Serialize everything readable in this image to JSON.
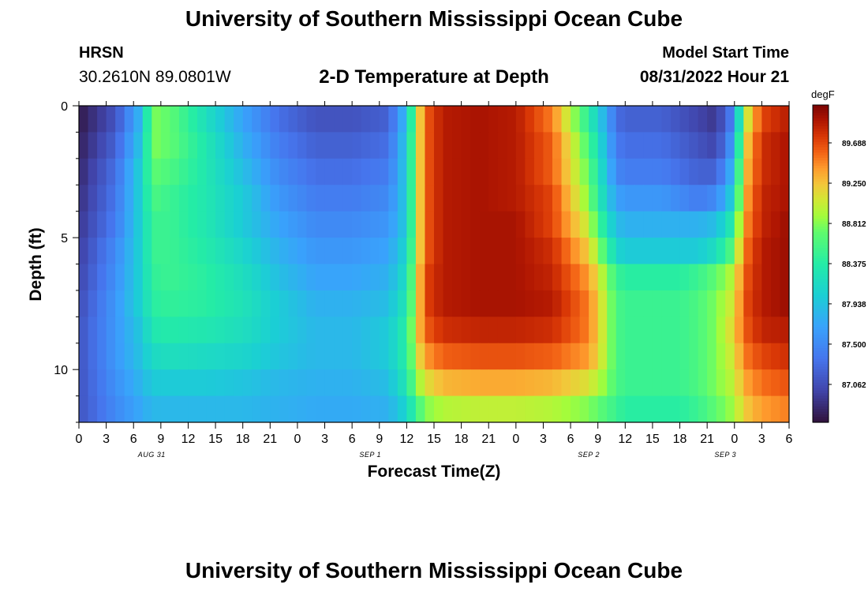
{
  "header": {
    "title": "University of Southern Mississippi Ocean Cube",
    "station": "HRSN",
    "coords": "30.2610N  89.0801W",
    "subtitle": "2-D Temperature at Depth",
    "model_start_label": "Model Start Time",
    "model_start_time": "08/31/2022 Hour 21"
  },
  "footer": {
    "title": "University of Southern Mississippi Ocean Cube"
  },
  "chart_data": {
    "type": "heatmap",
    "title": "2-D Temperature at Depth",
    "xlabel": "Forecast Time(Z)",
    "ylabel": "Depth (ft)",
    "colorbar_unit": "degF",
    "x_tick_labels": [
      "0",
      "3",
      "6",
      "9",
      "12",
      "15",
      "18",
      "21",
      "0",
      "3",
      "6",
      "9",
      "12",
      "15",
      "18",
      "21",
      "0",
      "3",
      "6",
      "9",
      "12",
      "15",
      "18",
      "21",
      "0",
      "3",
      "6"
    ],
    "date_labels": [
      {
        "label": "AUG 31",
        "at_hour": 8
      },
      {
        "label": "SEP 1",
        "at_hour": 32
      },
      {
        "label": "SEP 2",
        "at_hour": 56
      },
      {
        "label": "SEP 3",
        "at_hour": 71
      }
    ],
    "x_range_hours": [
      0,
      78
    ],
    "y_ticks": [
      0,
      5,
      10
    ],
    "y_range_ft": [
      0,
      12
    ],
    "colorbar_ticks": [
      89.688,
      89.25,
      88.812,
      88.375,
      87.938,
      87.5,
      87.062
    ],
    "colorbar_range": [
      86.65,
      90.1
    ],
    "depth_rows_ft": [
      0.5,
      1.5,
      2.5,
      3.5,
      4.5,
      5.5,
      6.5,
      7.5,
      8.5,
      9.5,
      10.5,
      11.5
    ],
    "time_hours": [
      0,
      4,
      7,
      8,
      10,
      14,
      18,
      22,
      26,
      30,
      34,
      36,
      37,
      38,
      40,
      44,
      48,
      52,
      56,
      58,
      59,
      60,
      62,
      64,
      66,
      68,
      70,
      72,
      73,
      75,
      78
    ],
    "values_degF": [
      [
        86.7,
        87.1,
        87.9,
        88.8,
        88.7,
        88.2,
        87.7,
        87.3,
        87.1,
        87.1,
        87.2,
        87.9,
        88.9,
        89.6,
        89.9,
        89.95,
        89.9,
        89.5,
        88.4,
        87.7,
        87.3,
        87.2,
        87.2,
        87.2,
        87.1,
        87.0,
        86.9,
        87.5,
        88.9,
        89.7,
        89.9
      ],
      [
        86.75,
        87.2,
        88.0,
        88.8,
        88.7,
        88.3,
        87.8,
        87.4,
        87.2,
        87.2,
        87.3,
        88.0,
        88.9,
        89.6,
        89.9,
        89.95,
        89.9,
        89.6,
        88.6,
        87.8,
        87.4,
        87.3,
        87.3,
        87.3,
        87.2,
        87.1,
        87.0,
        87.7,
        89.1,
        89.8,
        89.95
      ],
      [
        86.8,
        87.3,
        88.1,
        88.7,
        88.6,
        88.3,
        87.9,
        87.5,
        87.3,
        87.3,
        87.4,
        88.0,
        88.9,
        89.6,
        89.9,
        89.95,
        89.9,
        89.6,
        88.7,
        87.9,
        87.5,
        87.4,
        87.4,
        87.4,
        87.3,
        87.2,
        87.2,
        87.9,
        89.2,
        89.8,
        89.95
      ],
      [
        86.85,
        87.35,
        88.1,
        88.6,
        88.5,
        88.3,
        88.0,
        87.6,
        87.4,
        87.4,
        87.5,
        88.0,
        88.9,
        89.6,
        89.9,
        89.95,
        89.9,
        89.7,
        88.8,
        88.0,
        87.7,
        87.6,
        87.6,
        87.6,
        87.5,
        87.4,
        87.5,
        88.1,
        89.3,
        89.85,
        89.95
      ],
      [
        86.9,
        87.4,
        88.1,
        88.5,
        88.5,
        88.3,
        88.0,
        87.7,
        87.5,
        87.5,
        87.6,
        88.0,
        88.9,
        89.6,
        89.9,
        89.95,
        89.95,
        89.7,
        89.0,
        88.2,
        87.9,
        87.8,
        87.8,
        87.8,
        87.8,
        87.8,
        87.9,
        88.4,
        89.4,
        89.85,
        90.0
      ],
      [
        86.95,
        87.5,
        88.1,
        88.5,
        88.5,
        88.35,
        88.1,
        87.8,
        87.6,
        87.6,
        87.7,
        88.1,
        88.9,
        89.6,
        89.9,
        89.95,
        89.95,
        89.8,
        89.2,
        88.5,
        88.1,
        88.0,
        88.0,
        88.0,
        88.0,
        88.0,
        88.2,
        88.7,
        89.5,
        89.9,
        90.0
      ],
      [
        87.0,
        87.55,
        88.1,
        88.45,
        88.5,
        88.4,
        88.2,
        87.9,
        87.7,
        87.7,
        87.8,
        88.2,
        89.0,
        89.7,
        89.9,
        89.95,
        89.95,
        89.85,
        89.4,
        88.8,
        88.5,
        88.4,
        88.4,
        88.4,
        88.4,
        88.5,
        88.7,
        89.0,
        89.6,
        89.9,
        90.0
      ],
      [
        87.05,
        87.6,
        88.1,
        88.4,
        88.45,
        88.4,
        88.25,
        88.0,
        87.8,
        87.8,
        87.9,
        88.3,
        89.0,
        89.7,
        89.9,
        89.95,
        89.95,
        89.9,
        89.5,
        88.9,
        88.6,
        88.5,
        88.5,
        88.5,
        88.5,
        88.6,
        88.8,
        89.1,
        89.65,
        89.9,
        90.0
      ],
      [
        87.1,
        87.6,
        88.0,
        88.3,
        88.35,
        88.3,
        88.2,
        88.0,
        87.85,
        87.85,
        88.0,
        88.4,
        89.1,
        89.6,
        89.8,
        89.85,
        89.85,
        89.8,
        89.5,
        88.9,
        88.6,
        88.5,
        88.5,
        88.5,
        88.5,
        88.6,
        88.8,
        89.2,
        89.6,
        89.85,
        89.9
      ],
      [
        87.1,
        87.6,
        87.95,
        88.15,
        88.2,
        88.15,
        88.1,
        87.95,
        87.85,
        87.85,
        88.0,
        88.4,
        89.0,
        89.4,
        89.6,
        89.65,
        89.65,
        89.6,
        89.4,
        88.9,
        88.6,
        88.5,
        88.5,
        88.5,
        88.5,
        88.6,
        88.8,
        89.1,
        89.5,
        89.7,
        89.8
      ],
      [
        87.1,
        87.55,
        87.85,
        88.0,
        88.0,
        88.0,
        87.95,
        87.85,
        87.8,
        87.8,
        87.9,
        88.3,
        88.8,
        89.1,
        89.3,
        89.35,
        89.35,
        89.3,
        89.1,
        88.8,
        88.6,
        88.5,
        88.5,
        88.5,
        88.5,
        88.6,
        88.8,
        89.0,
        89.35,
        89.55,
        89.65
      ],
      [
        87.1,
        87.5,
        87.75,
        87.85,
        87.85,
        87.85,
        87.85,
        87.8,
        87.75,
        87.75,
        87.8,
        88.1,
        88.5,
        88.8,
        88.95,
        89.0,
        89.0,
        88.95,
        88.8,
        88.6,
        88.5,
        88.4,
        88.4,
        88.4,
        88.4,
        88.5,
        88.7,
        88.9,
        89.2,
        89.4,
        89.5
      ]
    ]
  }
}
